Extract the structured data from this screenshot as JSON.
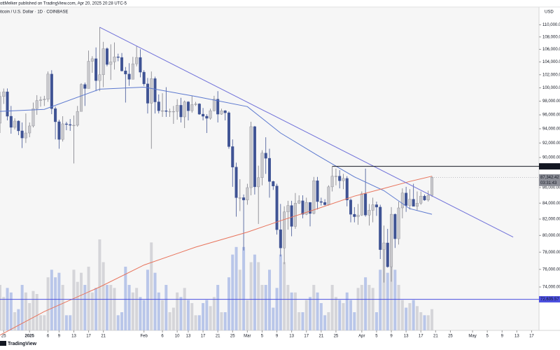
{
  "chart_data": {
    "type": "candlestick",
    "header": "ottMelker published on TradingView.com, Apr 20, 2025 20:28 UTC-5",
    "symbol": "itcoin / U.S. Dollar · 1D · COINBASE",
    "currency": "USD",
    "brand": "TradingView",
    "log": true,
    "grid": false,
    "up_color": "#c9c9cd",
    "down_color": "#3f5394",
    "volume_up_color": "#cfcfd4",
    "volume_down_color": "#aebde6",
    "ylim": [
      69300,
      113000
    ],
    "yticks": [
      {
        "value": 74000,
        "label": "74,000.00"
      },
      {
        "value": 76000,
        "label": "76,000.00"
      },
      {
        "value": 78000,
        "label": "78,000.00"
      },
      {
        "value": 80000,
        "label": "80,000.00"
      },
      {
        "value": 82000,
        "label": "82,000.00"
      },
      {
        "value": 84000,
        "label": "84,000.00"
      },
      {
        "value": 86000,
        "label": "86,000.00"
      },
      {
        "value": 90000,
        "label": "90,000.00"
      },
      {
        "value": 92000,
        "label": "92,000.00"
      },
      {
        "value": 94000,
        "label": "94,000.00"
      },
      {
        "value": 96000,
        "label": "96,000.00"
      },
      {
        "value": 98000,
        "label": "98,000.00"
      },
      {
        "value": 100000,
        "label": "100,000.00"
      },
      {
        "value": 102000,
        "label": "102,000.00"
      },
      {
        "value": 104000,
        "label": "104,000.00"
      },
      {
        "value": 106000,
        "label": "106,000.00"
      },
      {
        "value": 108000,
        "label": "108,000.00"
      },
      {
        "value": 110000,
        "label": "110,000.00"
      }
    ],
    "xlim": [
      "2024-12-24",
      "2025-05-19"
    ],
    "xticks": [
      {
        "value": "2024-12-25",
        "label": "25"
      },
      {
        "value": "2025-01-01",
        "label": "2025"
      },
      {
        "value": "2025-01-06",
        "label": "6"
      },
      {
        "value": "2025-01-09",
        "label": "9"
      },
      {
        "value": "2025-01-13",
        "label": "13"
      },
      {
        "value": "2025-01-17",
        "label": "17"
      },
      {
        "value": "2025-01-21",
        "label": "21"
      },
      {
        "value": "2025-02-01",
        "label": "Feb"
      },
      {
        "value": "2025-02-06",
        "label": "6"
      },
      {
        "value": "2025-02-10",
        "label": "10"
      },
      {
        "value": "2025-02-13",
        "label": "13"
      },
      {
        "value": "2025-02-17",
        "label": "17"
      },
      {
        "value": "2025-02-21",
        "label": "21"
      },
      {
        "value": "2025-02-25",
        "label": "25"
      },
      {
        "value": "2025-03-01",
        "label": "Mar"
      },
      {
        "value": "2025-03-05",
        "label": "5"
      },
      {
        "value": "2025-03-09",
        "label": "9"
      },
      {
        "value": "2025-03-13",
        "label": "13"
      },
      {
        "value": "2025-03-17",
        "label": "17"
      },
      {
        "value": "2025-03-21",
        "label": "21"
      },
      {
        "value": "2025-03-25",
        "label": "25"
      },
      {
        "value": "2025-04-01",
        "label": "Apr"
      },
      {
        "value": "2025-04-05",
        "label": "5"
      },
      {
        "value": "2025-04-09",
        "label": "9"
      },
      {
        "value": "2025-04-13",
        "label": "13"
      },
      {
        "value": "2025-04-17",
        "label": "17"
      },
      {
        "value": "2025-04-21",
        "label": "21"
      },
      {
        "value": "2025-04-25",
        "label": "25"
      },
      {
        "value": "2025-05-01",
        "label": "May"
      },
      {
        "value": "2025-05-05",
        "label": "5"
      },
      {
        "value": "2025-05-09",
        "label": "9"
      },
      {
        "value": "2025-05-13",
        "label": "13"
      },
      {
        "value": "2025-05-17",
        "label": "17"
      }
    ],
    "candles": {
      "x": [
        "2024-12-24",
        "2024-12-25",
        "2024-12-26",
        "2024-12-27",
        "2024-12-28",
        "2024-12-29",
        "2024-12-30",
        "2024-12-31",
        "2025-01-01",
        "2025-01-02",
        "2025-01-03",
        "2025-01-04",
        "2025-01-05",
        "2025-01-06",
        "2025-01-07",
        "2025-01-08",
        "2025-01-09",
        "2025-01-10",
        "2025-01-11",
        "2025-01-12",
        "2025-01-13",
        "2025-01-14",
        "2025-01-15",
        "2025-01-16",
        "2025-01-17",
        "2025-01-18",
        "2025-01-19",
        "2025-01-20",
        "2025-01-21",
        "2025-01-22",
        "2025-01-23",
        "2025-01-24",
        "2025-01-25",
        "2025-01-26",
        "2025-01-27",
        "2025-01-28",
        "2025-01-29",
        "2025-01-30",
        "2025-01-31",
        "2025-02-01",
        "2025-02-02",
        "2025-02-03",
        "2025-02-04",
        "2025-02-05",
        "2025-02-06",
        "2025-02-07",
        "2025-02-08",
        "2025-02-09",
        "2025-02-10",
        "2025-02-11",
        "2025-02-12",
        "2025-02-13",
        "2025-02-14",
        "2025-02-15",
        "2025-02-16",
        "2025-02-17",
        "2025-02-18",
        "2025-02-19",
        "2025-02-20",
        "2025-02-21",
        "2025-02-22",
        "2025-02-23",
        "2025-02-24",
        "2025-02-25",
        "2025-02-26",
        "2025-02-27",
        "2025-02-28",
        "2025-03-01",
        "2025-03-02",
        "2025-03-03",
        "2025-03-04",
        "2025-03-05",
        "2025-03-06",
        "2025-03-07",
        "2025-03-08",
        "2025-03-09",
        "2025-03-10",
        "2025-03-11",
        "2025-03-12",
        "2025-03-13",
        "2025-03-14",
        "2025-03-15",
        "2025-03-16",
        "2025-03-17",
        "2025-03-18",
        "2025-03-19",
        "2025-03-20",
        "2025-03-21",
        "2025-03-22",
        "2025-03-23",
        "2025-03-24",
        "2025-03-25",
        "2025-03-26",
        "2025-03-27",
        "2025-03-28",
        "2025-03-29",
        "2025-03-30",
        "2025-03-31",
        "2025-04-01",
        "2025-04-02",
        "2025-04-03",
        "2025-04-04",
        "2025-04-05",
        "2025-04-06",
        "2025-04-07",
        "2025-04-08",
        "2025-04-09",
        "2025-04-10",
        "2025-04-11",
        "2025-04-12",
        "2025-04-13",
        "2025-04-14",
        "2025-04-15",
        "2025-04-16",
        "2025-04-17",
        "2025-04-18",
        "2025-04-19",
        "2025-04-20"
      ],
      "open": [
        94800,
        98700,
        99400,
        95800,
        94200,
        95100,
        93700,
        92700,
        93400,
        94400,
        96900,
        98100,
        98200,
        98300,
        102100,
        96900,
        95000,
        92500,
        94700,
        94600,
        94500,
        94500,
        96500,
        100500,
        99900,
        104100,
        104500,
        101100,
        102000,
        106100,
        103600,
        104000,
        104800,
        104700,
        102600,
        102100,
        101300,
        103700,
        104700,
        102400,
        100600,
        97700,
        101400,
        97900,
        96600,
        96600,
        96500,
        96500,
        96500,
        97400,
        95700,
        97900,
        96600,
        97500,
        97600,
        96100,
        95800,
        95500,
        96600,
        98300,
        96100,
        96600,
        96300,
        91500,
        88700,
        84700,
        84700,
        84400,
        86000,
        94300,
        86100,
        87300,
        90600,
        89900,
        86800,
        86200,
        80700,
        78500,
        82900,
        83700,
        81100,
        84000,
        84300,
        82600,
        84100,
        82700,
        86900,
        84200,
        84100,
        83800,
        86100,
        87500,
        87500,
        86900,
        87200,
        84400,
        82600,
        82300,
        82500,
        85200,
        82500,
        83100,
        83800,
        83500,
        78300,
        79100,
        76300,
        82600,
        79600,
        83400,
        85300,
        83700,
        84500,
        83600,
        84000,
        84900,
        84400,
        85000
      ],
      "high": [
        99400,
        99900,
        99900,
        97300,
        95500,
        95200,
        94900,
        96200,
        94900,
        97800,
        98900,
        98700,
        98800,
        102500,
        102700,
        97200,
        95300,
        95800,
        95000,
        95400,
        95900,
        97300,
        100700,
        100800,
        105800,
        104900,
        106300,
        109600,
        107200,
        106300,
        106800,
        107100,
        105300,
        105400,
        103200,
        103800,
        104800,
        106500,
        106000,
        102700,
        101500,
        102500,
        101700,
        99000,
        99200,
        100100,
        96900,
        97300,
        98300,
        98500,
        98100,
        98000,
        98800,
        97900,
        97700,
        97000,
        96100,
        96900,
        98800,
        99500,
        96900,
        96700,
        96500,
        92500,
        89300,
        87100,
        85100,
        86500,
        95000,
        94400,
        88900,
        91000,
        92800,
        91200,
        86900,
        86500,
        83900,
        83600,
        84300,
        84300,
        85300,
        85000,
        85000,
        84700,
        84100,
        87400,
        87400,
        84700,
        84500,
        86300,
        88800,
        88500,
        88300,
        87800,
        87500,
        84600,
        83500,
        83900,
        85500,
        88500,
        83900,
        84700,
        84200,
        83800,
        81200,
        80800,
        83500,
        82700,
        84200,
        85900,
        86100,
        85800,
        86500,
        85500,
        85500,
        85100,
        85600,
        87500
      ],
      "low": [
        93400,
        97600,
        95200,
        93300,
        93900,
        93100,
        91300,
        92000,
        92800,
        94200,
        96000,
        97200,
        97300,
        97900,
        96100,
        92500,
        91200,
        92200,
        93800,
        93700,
        89200,
        94300,
        96500,
        97300,
        99900,
        102300,
        99500,
        99500,
        100100,
        103300,
        101200,
        102800,
        104100,
        102500,
        97800,
        100300,
        101300,
        103300,
        101600,
        100300,
        96200,
        91200,
        96200,
        96200,
        95700,
        95700,
        95700,
        94700,
        95300,
        94900,
        94100,
        95200,
        96300,
        97300,
        96000,
        95200,
        93400,
        95300,
        96500,
        94900,
        96000,
        95200,
        91200,
        86100,
        82300,
        83000,
        78200,
        83800,
        85000,
        85100,
        81400,
        86300,
        87800,
        84700,
        85700,
        80100,
        77500,
        76600,
        80700,
        79900,
        80800,
        83900,
        82100,
        82500,
        81100,
        82600,
        83200,
        83700,
        83700,
        83700,
        85500,
        86300,
        85900,
        85800,
        83600,
        81600,
        81600,
        81300,
        82400,
        82300,
        81200,
        81600,
        82400,
        77200,
        74500,
        76200,
        74600,
        78500,
        78900,
        82100,
        82900,
        83200,
        83600,
        83100,
        83800,
        84300,
        84200,
        84800
      ],
      "close": [
        98700,
        99400,
        95800,
        94200,
        95100,
        93700,
        92700,
        93400,
        94400,
        96900,
        98100,
        98200,
        98300,
        102100,
        96900,
        95000,
        92500,
        94700,
        94600,
        94500,
        94500,
        96500,
        100500,
        99900,
        104100,
        104500,
        101100,
        102000,
        106100,
        103600,
        104000,
        104800,
        104700,
        102600,
        102100,
        101300,
        103700,
        104700,
        102400,
        100600,
        97700,
        101400,
        97900,
        96600,
        96600,
        96500,
        96500,
        96500,
        97400,
        95700,
        97900,
        96600,
        97500,
        97600,
        96100,
        95800,
        95500,
        96600,
        98300,
        96100,
        96600,
        96300,
        91500,
        88700,
        84700,
        84700,
        84400,
        86000,
        94300,
        86100,
        87300,
        90600,
        89900,
        86800,
        86200,
        80700,
        78500,
        82900,
        83700,
        81100,
        84000,
        84300,
        82600,
        84100,
        82700,
        86900,
        84200,
        84100,
        83800,
        86100,
        87500,
        87500,
        86900,
        87200,
        84400,
        82600,
        82300,
        82500,
        85200,
        82500,
        83100,
        83800,
        83500,
        78300,
        79100,
        76300,
        82600,
        79600,
        83400,
        85300,
        83700,
        84500,
        83600,
        84000,
        84900,
        84400,
        85000,
        87342.42
      ],
      "volume": [
        30,
        22,
        28,
        25,
        12,
        14,
        30,
        25,
        18,
        26,
        24,
        10,
        10,
        35,
        40,
        35,
        38,
        30,
        10,
        10,
        40,
        32,
        38,
        30,
        42,
        25,
        28,
        60,
        45,
        30,
        30,
        28,
        10,
        12,
        42,
        30,
        25,
        28,
        22,
        20,
        40,
        58,
        38,
        25,
        20,
        30,
        12,
        15,
        25,
        22,
        28,
        20,
        18,
        10,
        10,
        18,
        20,
        16,
        22,
        30,
        12,
        12,
        35,
        50,
        55,
        40,
        55,
        20,
        45,
        50,
        45,
        30,
        30,
        40,
        15,
        28,
        50,
        45,
        30,
        25,
        25,
        12,
        12,
        20,
        22,
        30,
        25,
        18,
        10,
        12,
        30,
        22,
        20,
        18,
        25,
        20,
        12,
        28,
        30,
        35,
        30,
        28,
        12,
        40,
        55,
        38,
        60,
        40,
        30,
        20,
        15,
        18,
        20,
        16,
        12,
        10,
        10,
        14
      ]
    },
    "last_price_label": "87,342.42",
    "countdown": "03:31:43",
    "lines": [
      {
        "color": "#5b78cf",
        "x": [
          "2024-12-24",
          "2025-01-05",
          "2025-01-20",
          "2025-02-01",
          "2025-02-15",
          "2025-03-01",
          "2025-03-10",
          "2025-03-20",
          "2025-03-30",
          "2025-04-07",
          "2025-04-14",
          "2025-04-20"
        ],
        "values": [
          96500,
          96800,
          99800,
          100100,
          98700,
          97200,
          93400,
          90300,
          87400,
          85600,
          83300,
          82600
        ]
      },
      {
        "color": "#e8745c",
        "x": [
          "2024-12-24",
          "2025-01-05",
          "2025-01-20",
          "2025-02-01",
          "2025-02-15",
          "2025-03-01",
          "2025-03-10",
          "2025-03-20",
          "2025-03-30",
          "2025-04-07",
          "2025-04-14",
          "2025-04-20"
        ],
        "values": [
          68800,
          71300,
          74000,
          76500,
          78600,
          80400,
          81800,
          83300,
          84900,
          85900,
          86800,
          87500
        ]
      }
    ],
    "trendline": {
      "color": "#6f70d9",
      "x": [
        "2025-01-20",
        "2025-05-12"
      ],
      "values": [
        109600,
        79800
      ]
    },
    "levels": [
      {
        "value": 88804.64,
        "label": "88,804.64",
        "from": "2025-03-24",
        "color": "#131722"
      },
      {
        "value": 72635.57,
        "label": "72,635.57",
        "color": "#4b4fe0"
      }
    ]
  }
}
